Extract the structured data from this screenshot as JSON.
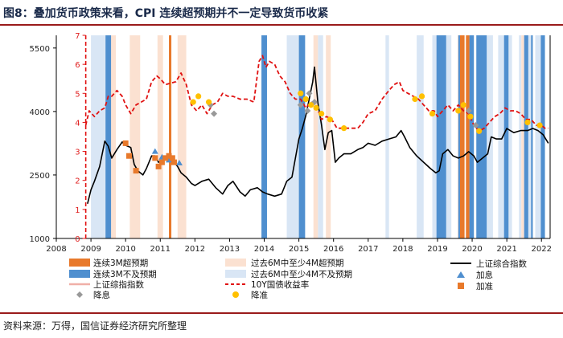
{
  "page_title": "图8：叠加货币政策来看，CPI 连续超预期并不一定导致货币收紧",
  "source": "资料来源：万得，国信证券经济研究所整理",
  "colors": {
    "over_3m": "#e8792b",
    "under_3m": "#4f8fcf",
    "over_6m": "#fbe1d1",
    "under_6m": "#d9e6f5",
    "index_line": "#000000",
    "yield_line": "#e01010",
    "cut_rate": "#999999",
    "cut_rrr": "#ffc000",
    "hike_rate": "#4f8fcf",
    "hike_rrr": "#e8792b"
  },
  "chart_data": {
    "type": "line",
    "title": "",
    "x_ticks": [
      "2008",
      "2009",
      "2010",
      "2011",
      "2012",
      "2013",
      "2014",
      "2015",
      "2016",
      "2017",
      "2018",
      "2019",
      "2020",
      "2021",
      "2022"
    ],
    "x_range": [
      2008.0,
      2022.25
    ],
    "y_left": {
      "label": "上证综合指数",
      "range": [
        1000,
        5800
      ],
      "ticks": [
        "1000",
        "2500",
        "4000",
        "5500"
      ]
    },
    "y_right": {
      "label": "10Y国债收益率",
      "range": [
        0,
        7
      ],
      "ticks": [
        "0",
        "1",
        "2",
        "3",
        "4",
        "5",
        "6",
        "7"
      ]
    },
    "bands": {
      "over_3m": [
        [
          2011.25,
          2011.32
        ],
        [
          2019.65,
          2019.78
        ],
        [
          2019.82,
          2019.92
        ]
      ],
      "under_3m": [
        [
          2009.42,
          2009.58
        ],
        [
          2013.92,
          2014.08
        ],
        [
          2015.0,
          2015.18
        ],
        [
          2018.97,
          2019.25
        ],
        [
          2019.6,
          2019.65
        ],
        [
          2019.92,
          2020.05
        ],
        [
          2020.12,
          2020.42
        ],
        [
          2020.92,
          2021.05
        ],
        [
          2021.5,
          2021.62
        ],
        [
          2021.7,
          2021.75
        ],
        [
          2021.98,
          2022.1
        ]
      ],
      "over_6m": [
        [
          2009.58,
          2009.72
        ],
        [
          2010.12,
          2010.42
        ],
        [
          2010.92,
          2011.08
        ],
        [
          2011.5,
          2011.75
        ],
        [
          2015.42,
          2015.55
        ],
        [
          2015.78,
          2015.92
        ],
        [
          2019.58,
          2019.62
        ],
        [
          2019.92,
          2019.98
        ],
        [
          2021.42,
          2021.5
        ]
      ],
      "under_6m": [
        [
          2009.0,
          2009.42
        ],
        [
          2014.65,
          2015.0
        ],
        [
          2015.55,
          2015.7
        ],
        [
          2017.5,
          2017.6
        ],
        [
          2018.4,
          2018.6
        ],
        [
          2018.85,
          2018.97
        ],
        [
          2019.25,
          2019.4
        ],
        [
          2020.42,
          2020.6
        ],
        [
          2020.75,
          2020.92
        ],
        [
          2021.05,
          2021.15
        ],
        [
          2021.35,
          2021.42
        ],
        [
          2021.62,
          2021.7
        ],
        [
          2021.82,
          2021.98
        ]
      ]
    },
    "series": [
      {
        "name": "上证综合指数",
        "axis": "left",
        "x": [
          2008.9,
          2009.0,
          2009.1,
          2009.25,
          2009.4,
          2009.5,
          2009.6,
          2009.75,
          2009.9,
          2010.0,
          2010.15,
          2010.25,
          2010.35,
          2010.5,
          2010.6,
          2010.75,
          2010.85,
          2010.95,
          2011.1,
          2011.25,
          2011.4,
          2011.5,
          2011.6,
          2011.75,
          2011.9,
          2012.0,
          2012.2,
          2012.4,
          2012.6,
          2012.8,
          2012.95,
          2013.1,
          2013.3,
          2013.45,
          2013.6,
          2013.8,
          2013.95,
          2014.1,
          2014.3,
          2014.5,
          2014.65,
          2014.8,
          2014.9,
          2015.0,
          2015.1,
          2015.2,
          2015.3,
          2015.4,
          2015.45,
          2015.55,
          2015.65,
          2015.75,
          2015.85,
          2015.95,
          2016.05,
          2016.15,
          2016.3,
          2016.5,
          2016.7,
          2016.85,
          2017.0,
          2017.2,
          2017.4,
          2017.6,
          2017.8,
          2017.95,
          2018.05,
          2018.2,
          2018.4,
          2018.6,
          2018.8,
          2018.95,
          2019.05,
          2019.15,
          2019.3,
          2019.45,
          2019.6,
          2019.75,
          2019.9,
          2020.05,
          2020.15,
          2020.3,
          2020.45,
          2020.55,
          2020.7,
          2020.85,
          2021.0,
          2021.2,
          2021.4,
          2021.6,
          2021.75,
          2021.9,
          2022.05,
          2022.2
        ],
        "y": [
          1820,
          2150,
          2350,
          2700,
          3300,
          3180,
          2900,
          3100,
          3280,
          3200,
          3150,
          2750,
          2600,
          2500,
          2650,
          2950,
          2950,
          2800,
          2850,
          2950,
          2800,
          2700,
          2550,
          2450,
          2300,
          2250,
          2350,
          2400,
          2200,
          2050,
          2250,
          2350,
          2100,
          2000,
          2150,
          2200,
          2100,
          2050,
          2000,
          2050,
          2350,
          2450,
          2900,
          3350,
          3600,
          3900,
          4300,
          4700,
          5050,
          4200,
          3700,
          3100,
          3500,
          3550,
          2800,
          2900,
          3000,
          3000,
          3100,
          3150,
          3250,
          3200,
          3300,
          3350,
          3400,
          3550,
          3400,
          3150,
          2950,
          2800,
          2650,
          2550,
          2600,
          3000,
          3100,
          2950,
          2900,
          2950,
          3050,
          2950,
          2800,
          2900,
          3000,
          3400,
          3350,
          3350,
          3600,
          3500,
          3550,
          3550,
          3600,
          3550,
          3450,
          3250
        ]
      },
      {
        "name": "10Y国债收益率",
        "axis": "right",
        "x": [
          2008.85,
          2008.95,
          2009.1,
          2009.25,
          2009.4,
          2009.5,
          2009.6,
          2009.75,
          2009.9,
          2010.0,
          2010.15,
          2010.3,
          2010.45,
          2010.6,
          2010.75,
          2010.9,
          2011.0,
          2011.15,
          2011.3,
          2011.45,
          2011.6,
          2011.75,
          2011.9,
          2012.05,
          2012.2,
          2012.35,
          2012.5,
          2012.65,
          2012.8,
          2012.95,
          2013.1,
          2013.3,
          2013.5,
          2013.7,
          2013.85,
          2013.95,
          2014.05,
          2014.15,
          2014.3,
          2014.45,
          2014.6,
          2014.75,
          2014.9,
          2015.05,
          2015.2,
          2015.35,
          2015.5,
          2015.65,
          2015.8,
          2015.95,
          2016.1,
          2016.3,
          2016.5,
          2016.7,
          2016.85,
          2017.0,
          2017.2,
          2017.4,
          2017.6,
          2017.75,
          2017.9,
          2018.0,
          2018.15,
          2018.3,
          2018.45,
          2018.6,
          2018.75,
          2018.9,
          2019.0,
          2019.15,
          2019.3,
          2019.45,
          2019.6,
          2019.75,
          2019.9,
          2020.05,
          2020.2,
          2020.35,
          2020.5,
          2020.65,
          2020.8,
          2020.95,
          2021.1,
          2021.25,
          2021.4,
          2021.55,
          2021.7,
          2021.85,
          2022.0,
          2022.1,
          2022.2
        ],
        "y": [
          3.9,
          4.4,
          4.2,
          4.4,
          4.5,
          4.9,
          4.9,
          5.1,
          4.9,
          4.6,
          4.3,
          4.6,
          4.7,
          4.8,
          5.4,
          5.6,
          5.5,
          5.3,
          5.35,
          5.4,
          5.7,
          5.3,
          4.6,
          4.4,
          4.6,
          4.3,
          4.6,
          4.7,
          5.0,
          4.9,
          4.9,
          4.8,
          4.8,
          4.7,
          6.1,
          6.3,
          5.9,
          6.1,
          6.0,
          5.6,
          5.4,
          5.0,
          4.8,
          4.8,
          4.5,
          4.7,
          4.6,
          4.1,
          4.2,
          4.1,
          3.8,
          3.8,
          3.8,
          3.8,
          4.0,
          4.3,
          4.4,
          4.8,
          5.1,
          5.3,
          5.4,
          5.1,
          5.0,
          4.9,
          4.8,
          4.6,
          4.4,
          4.4,
          4.2,
          4.4,
          4.6,
          4.4,
          4.6,
          4.4,
          4.3,
          3.9,
          3.7,
          3.8,
          4.0,
          4.2,
          4.3,
          4.5,
          4.4,
          4.4,
          4.3,
          4.1,
          4.1,
          3.9,
          3.9,
          3.8,
          3.8
        ]
      }
    ],
    "markers": {
      "cut_rate": {
        "axis": "right",
        "points": [
          [
            2012.45,
            4.6
          ],
          [
            2012.55,
            4.3
          ],
          [
            2015.05,
            4.6
          ],
          [
            2015.25,
            4.4
          ],
          [
            2015.3,
            5.0
          ],
          [
            2015.45,
            4.7
          ],
          [
            2019.9,
            4.4
          ],
          [
            2020.1,
            3.9
          ]
        ]
      },
      "cut_rrr": {
        "axis": "right",
        "points": [
          [
            2011.95,
            4.7
          ],
          [
            2012.1,
            4.9
          ],
          [
            2012.4,
            4.7
          ],
          [
            2015.05,
            5.0
          ],
          [
            2015.2,
            4.8
          ],
          [
            2015.35,
            4.6
          ],
          [
            2015.5,
            4.5
          ],
          [
            2015.65,
            4.3
          ],
          [
            2015.9,
            4.1
          ],
          [
            2016.3,
            3.8
          ],
          [
            2018.35,
            4.8
          ],
          [
            2018.55,
            4.9
          ],
          [
            2018.85,
            4.3
          ],
          [
            2019.6,
            4.4
          ],
          [
            2019.75,
            4.6
          ],
          [
            2019.95,
            4.2
          ],
          [
            2020.2,
            3.7
          ],
          [
            2021.6,
            4.0
          ],
          [
            2021.95,
            3.9
          ]
        ]
      },
      "hike_rate": {
        "axis": "right",
        "points": [
          [
            2010.85,
            3.0
          ],
          [
            2011.05,
            2.8
          ],
          [
            2011.25,
            2.7
          ],
          [
            2011.55,
            2.6
          ]
        ]
      },
      "hike_rrr": {
        "axis": "left",
        "points": [
          [
            2010.0,
            3250
          ],
          [
            2010.1,
            2950
          ],
          [
            2010.3,
            2600
          ],
          [
            2010.85,
            2900
          ],
          [
            2010.95,
            2700
          ],
          [
            2011.05,
            2800
          ],
          [
            2011.15,
            2900
          ],
          [
            2011.25,
            2950
          ],
          [
            2011.35,
            2900
          ],
          [
            2011.4,
            2800
          ]
        ]
      }
    },
    "legend": {
      "over_3m": "连续3M超预期",
      "under_3m": "连续3M不及预期",
      "index": "上证综指指数",
      "cut_rate": "降息",
      "over_6m": "过去6M中至少4M超预期",
      "under_6m": "过去6M中至少4M不及预期",
      "yield": "10Y国债收益率",
      "cut_rrr": "降准",
      "index_right": "上证综合指数",
      "hike_rate": "加息",
      "hike_rrr": "加准"
    }
  }
}
